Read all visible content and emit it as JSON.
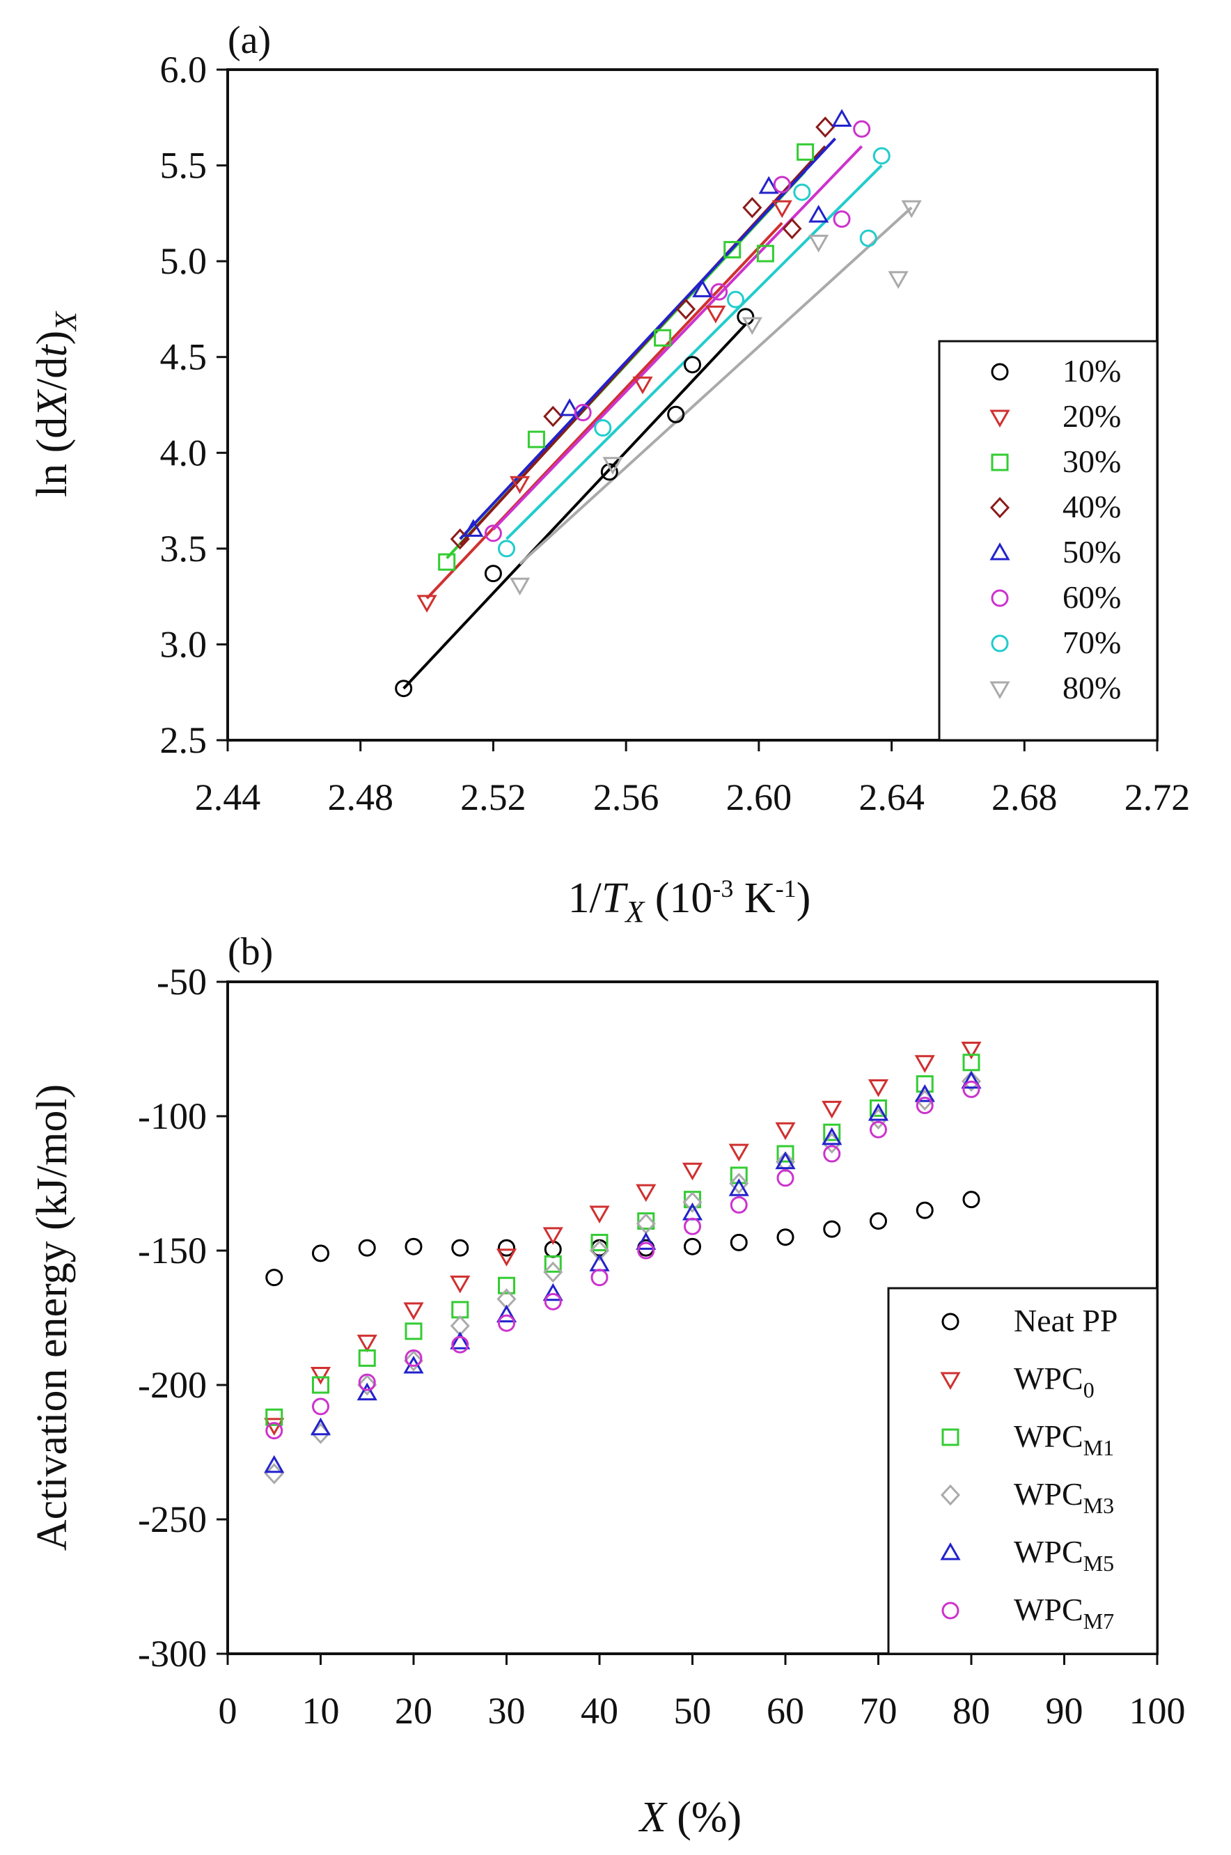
{
  "chart_data": [
    {
      "panel": "(a)",
      "type": "scatter",
      "ylabel": "ln (dX/dt)X",
      "xlabel": "1/TX (10-3 K-1)",
      "xlim": [
        2.44,
        2.72
      ],
      "ylim": [
        2.5,
        6.0
      ],
      "xticks": [
        "2.44",
        "2.48",
        "2.52",
        "2.56",
        "2.60",
        "2.64",
        "2.68",
        "2.72"
      ],
      "yticks": [
        "2.5",
        "3.0",
        "3.5",
        "4.0",
        "4.5",
        "5.0",
        "5.5",
        "6.0"
      ],
      "legend_position": "right",
      "series": [
        {
          "name": "10%",
          "color": "#000000",
          "marker": "circle",
          "points": [
            [
              2.493,
              2.77
            ],
            [
              2.52,
              3.37
            ],
            [
              2.555,
              3.9
            ],
            [
              2.575,
              4.2
            ],
            [
              2.58,
              4.46
            ],
            [
              2.596,
              4.71
            ]
          ],
          "fit": [
            [
              2.493,
              2.77
            ],
            [
              2.596,
              4.67
            ]
          ]
        },
        {
          "name": "20%",
          "color": "#d03030",
          "marker": "triangle-down",
          "points": [
            [
              2.5,
              3.22
            ],
            [
              2.528,
              3.84
            ],
            [
              2.565,
              4.36
            ],
            [
              2.587,
              4.73
            ],
            [
              2.607,
              5.28
            ]
          ],
          "fit": [
            [
              2.5,
              3.24
            ],
            [
              2.607,
              5.2
            ]
          ]
        },
        {
          "name": "30%",
          "color": "#33cc33",
          "marker": "square",
          "points": [
            [
              2.506,
              3.43
            ],
            [
              2.533,
              4.07
            ],
            [
              2.571,
              4.6
            ],
            [
              2.592,
              5.06
            ],
            [
              2.602,
              5.04
            ],
            [
              2.614,
              5.57
            ]
          ],
          "fit": [
            [
              2.506,
              3.45
            ],
            [
              2.614,
              5.47
            ]
          ]
        },
        {
          "name": "40%",
          "color": "#8b1a1a",
          "marker": "diamond",
          "points": [
            [
              2.51,
              3.55
            ],
            [
              2.538,
              4.19
            ],
            [
              2.578,
              4.75
            ],
            [
              2.598,
              5.28
            ],
            [
              2.61,
              5.17
            ],
            [
              2.62,
              5.7
            ]
          ],
          "fit": [
            [
              2.51,
              3.52
            ],
            [
              2.62,
              5.6
            ]
          ]
        },
        {
          "name": "50%",
          "color": "#2222cc",
          "marker": "triangle-up",
          "points": [
            [
              2.514,
              3.6
            ],
            [
              2.543,
              4.23
            ],
            [
              2.583,
              4.85
            ],
            [
              2.603,
              5.39
            ],
            [
              2.618,
              5.24
            ],
            [
              2.625,
              5.74
            ]
          ],
          "fit": [
            [
              2.51,
              3.55
            ],
            [
              2.623,
              5.64
            ]
          ]
        },
        {
          "name": "60%",
          "color": "#cc33cc",
          "marker": "circle",
          "points": [
            [
              2.52,
              3.58
            ],
            [
              2.547,
              4.21
            ],
            [
              2.588,
              4.84
            ],
            [
              2.607,
              5.4
            ],
            [
              2.625,
              5.22
            ],
            [
              2.631,
              5.69
            ]
          ],
          "fit": [
            [
              2.52,
              3.6
            ],
            [
              2.631,
              5.6
            ]
          ]
        },
        {
          "name": "70%",
          "color": "#22cccc",
          "marker": "circle",
          "points": [
            [
              2.524,
              3.5
            ],
            [
              2.553,
              4.13
            ],
            [
              2.593,
              4.8
            ],
            [
              2.613,
              5.36
            ],
            [
              2.633,
              5.12
            ],
            [
              2.637,
              5.55
            ]
          ],
          "fit": [
            [
              2.524,
              3.55
            ],
            [
              2.637,
              5.5
            ]
          ]
        },
        {
          "name": "80%",
          "color": "#aaaaaa",
          "marker": "triangle-down",
          "points": [
            [
              2.528,
              3.31
            ],
            [
              2.556,
              3.94
            ],
            [
              2.598,
              4.67
            ],
            [
              2.618,
              5.1
            ],
            [
              2.642,
              4.91
            ],
            [
              2.646,
              5.28
            ]
          ],
          "fit": [
            [
              2.528,
              3.42
            ],
            [
              2.646,
              5.28
            ]
          ]
        }
      ]
    },
    {
      "panel": "(b)",
      "type": "scatter",
      "ylabel": "Activation energy (kJ/mol)",
      "xlabel": "X (%)",
      "xlim": [
        0,
        100
      ],
      "ylim": [
        -300,
        -50
      ],
      "xticks": [
        "0",
        "10",
        "20",
        "30",
        "40",
        "50",
        "60",
        "70",
        "80",
        "90",
        "100"
      ],
      "yticks": [
        "-300",
        "-250",
        "-200",
        "-150",
        "-100",
        "-50"
      ],
      "legend_position": "bottom-right",
      "x": [
        5,
        10,
        15,
        20,
        25,
        30,
        35,
        40,
        45,
        50,
        55,
        60,
        65,
        70,
        75,
        80
      ],
      "series": [
        {
          "name": "Neat PP",
          "color": "#000000",
          "marker": "circle",
          "values": [
            -160,
            -151,
            -149,
            -148.5,
            -149,
            -149,
            -149.5,
            -149,
            -149,
            -148.5,
            -147,
            -145,
            -142,
            -139,
            -135,
            -131
          ]
        },
        {
          "name": "WPC0",
          "color": "#d03030",
          "marker": "triangle-down",
          "values": [
            -215,
            -196,
            -184,
            -172,
            -162,
            -152,
            -144,
            -136,
            -128,
            -120,
            -113,
            -105,
            -97,
            -89,
            -80,
            -75
          ]
        },
        {
          "name": "WPCM1",
          "color": "#33cc33",
          "marker": "square",
          "values": [
            -212,
            -200,
            -190,
            -180,
            -172,
            -163,
            -155,
            -147,
            -139,
            -131,
            -122,
            -114,
            -106,
            -97,
            -88,
            -80
          ]
        },
        {
          "name": "WPCM3",
          "color": "#aaaaaa",
          "marker": "diamond",
          "values": [
            -233,
            -218,
            -200,
            -191,
            -178,
            -168,
            -158,
            -150,
            -140,
            -132,
            -125,
            -117,
            -110,
            -101,
            -94,
            -87
          ]
        },
        {
          "name": "WPCM5",
          "color": "#2222cc",
          "marker": "triangle-up",
          "values": [
            -230,
            -216,
            -203,
            -193,
            -184,
            -174,
            -166,
            -155,
            -147,
            -136,
            -127,
            -117,
            -108,
            -99,
            -92,
            -87
          ]
        },
        {
          "name": "WPCM7",
          "color": "#cc33cc",
          "marker": "circle",
          "values": [
            -217,
            -208,
            -199,
            -190,
            -185,
            -177,
            -169,
            -160,
            -150,
            -141,
            -133,
            -123,
            -114,
            -105,
            -96,
            -90
          ]
        }
      ]
    }
  ]
}
